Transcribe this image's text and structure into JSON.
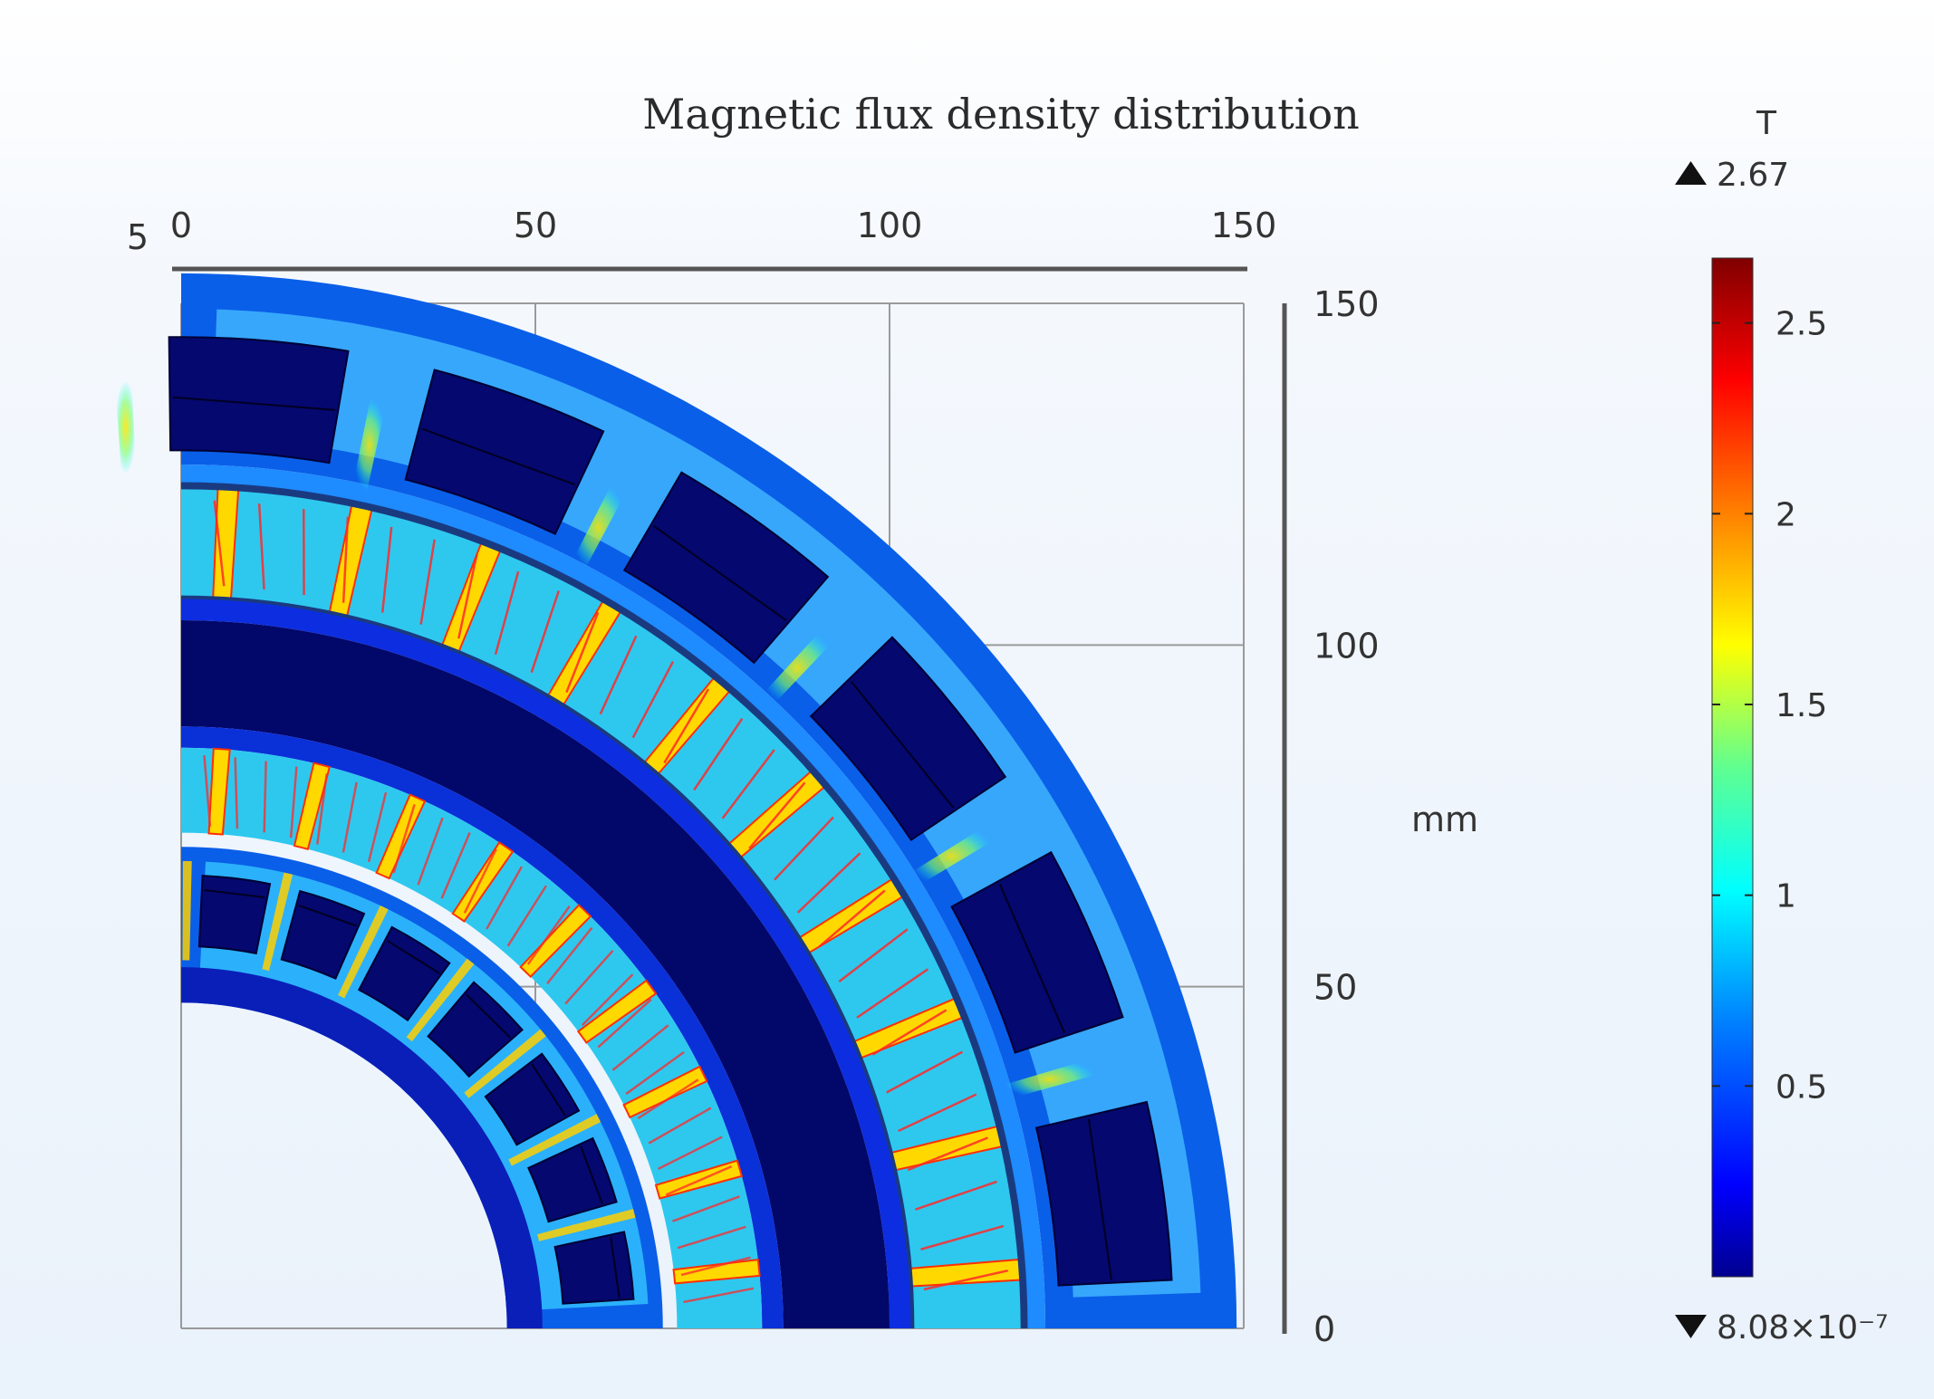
{
  "chart_data": {
    "type": "heatmap",
    "title": "Magnetic flux density distribution",
    "x_axis": {
      "ticks": [
        0,
        50,
        100,
        150
      ],
      "range": [
        0,
        150
      ],
      "extra_label": "5"
    },
    "y_axis": {
      "ticks": [
        0,
        50,
        100,
        150
      ],
      "range": [
        0,
        150
      ],
      "unit": "mm"
    },
    "colorbar": {
      "unit": "T",
      "max_label": "2.67",
      "min_label": "8.08×10⁻⁷",
      "max": 2.67,
      "min": 8.08e-07,
      "ticks": [
        {
          "value": 2.5,
          "label": "2.5"
        },
        {
          "value": 2,
          "label": "2"
        },
        {
          "value": 1.5,
          "label": "1.5"
        },
        {
          "value": 1,
          "label": "1"
        },
        {
          "value": 0.5,
          "label": "0.5"
        }
      ],
      "colormap": [
        "#00008f",
        "#0000ff",
        "#0080ff",
        "#00ffff",
        "#80ff80",
        "#ffff00",
        "#ff8000",
        "#ff0000",
        "#800000"
      ]
    },
    "geometry_mm": {
      "outer_stator_outer_r": 149,
      "outer_stator_inner_r": 122,
      "outer_rotor_outer_r": 119,
      "outer_rotor_inner_r": 103,
      "rotor_core_outer_r": 100,
      "rotor_core_inner_r": 85,
      "inner_rotor_outer_r": 82,
      "inner_rotor_inner_r": 70,
      "inner_stator_outer_r": 68,
      "inner_stator_inner_r": 46,
      "outer_slots": 6,
      "inner_slots": 7,
      "outer_magnets": 10,
      "inner_magnets": 9
    },
    "grid": true
  }
}
